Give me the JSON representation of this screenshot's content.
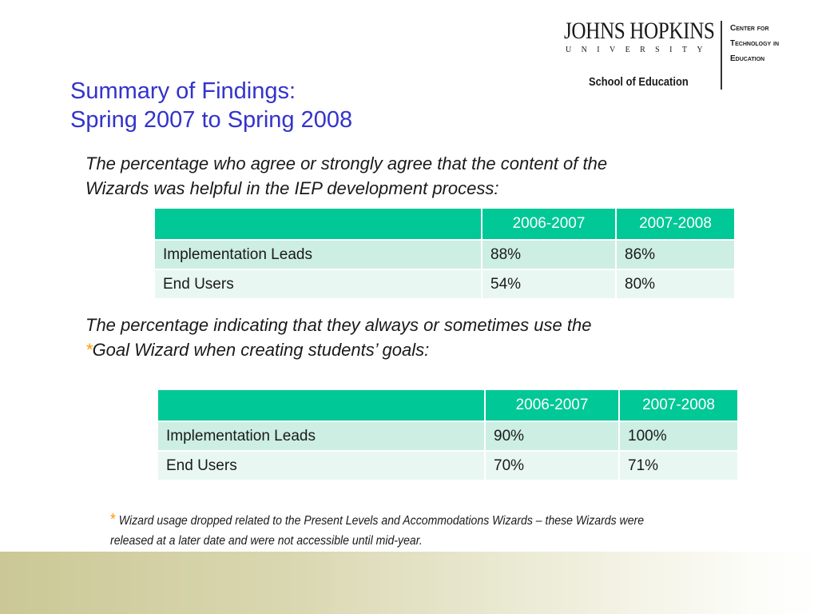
{
  "logo": {
    "name": "JOHNS HOPKINS",
    "university": "UNIVERSITY",
    "school": "School of Education",
    "center_lines": [
      "Center for",
      "Technology in",
      "Education"
    ]
  },
  "title": {
    "line1": "Summary of Findings:",
    "line2": "Spring 2007 to Spring 2008"
  },
  "section1": {
    "question": "The percentage who agree or strongly agree that the content of the Wizards was helpful in the IEP development process:",
    "table": {
      "headers": [
        "",
        "2006-2007",
        "2007-2008"
      ],
      "rows": [
        [
          "Implementation Leads",
          "88%",
          "86%"
        ],
        [
          "End Users",
          "54%",
          "80%"
        ]
      ]
    }
  },
  "section2": {
    "question_before": "The percentage indicating that they always or sometimes use the ",
    "star": "*",
    "question_after": "Goal Wizard when creating students’ goals:",
    "table": {
      "headers": [
        "",
        "2006-2007",
        "2007-2008"
      ],
      "rows": [
        [
          "Implementation Leads",
          "90%",
          "100%"
        ],
        [
          "End Users",
          "70%",
          "71%"
        ]
      ]
    }
  },
  "footnote": {
    "star": "*",
    "text": "Wizard usage dropped related to the Present Levels and Accommodations Wizards – these Wizards were released at a later date and were not accessible until mid-year."
  },
  "colors": {
    "title": "#3333cc",
    "table_header": "#00c896",
    "table_row_1": "#cdeee3",
    "table_row_2": "#e8f7f2",
    "asterisk": "#ff9900",
    "band_start": "#cbc896"
  }
}
